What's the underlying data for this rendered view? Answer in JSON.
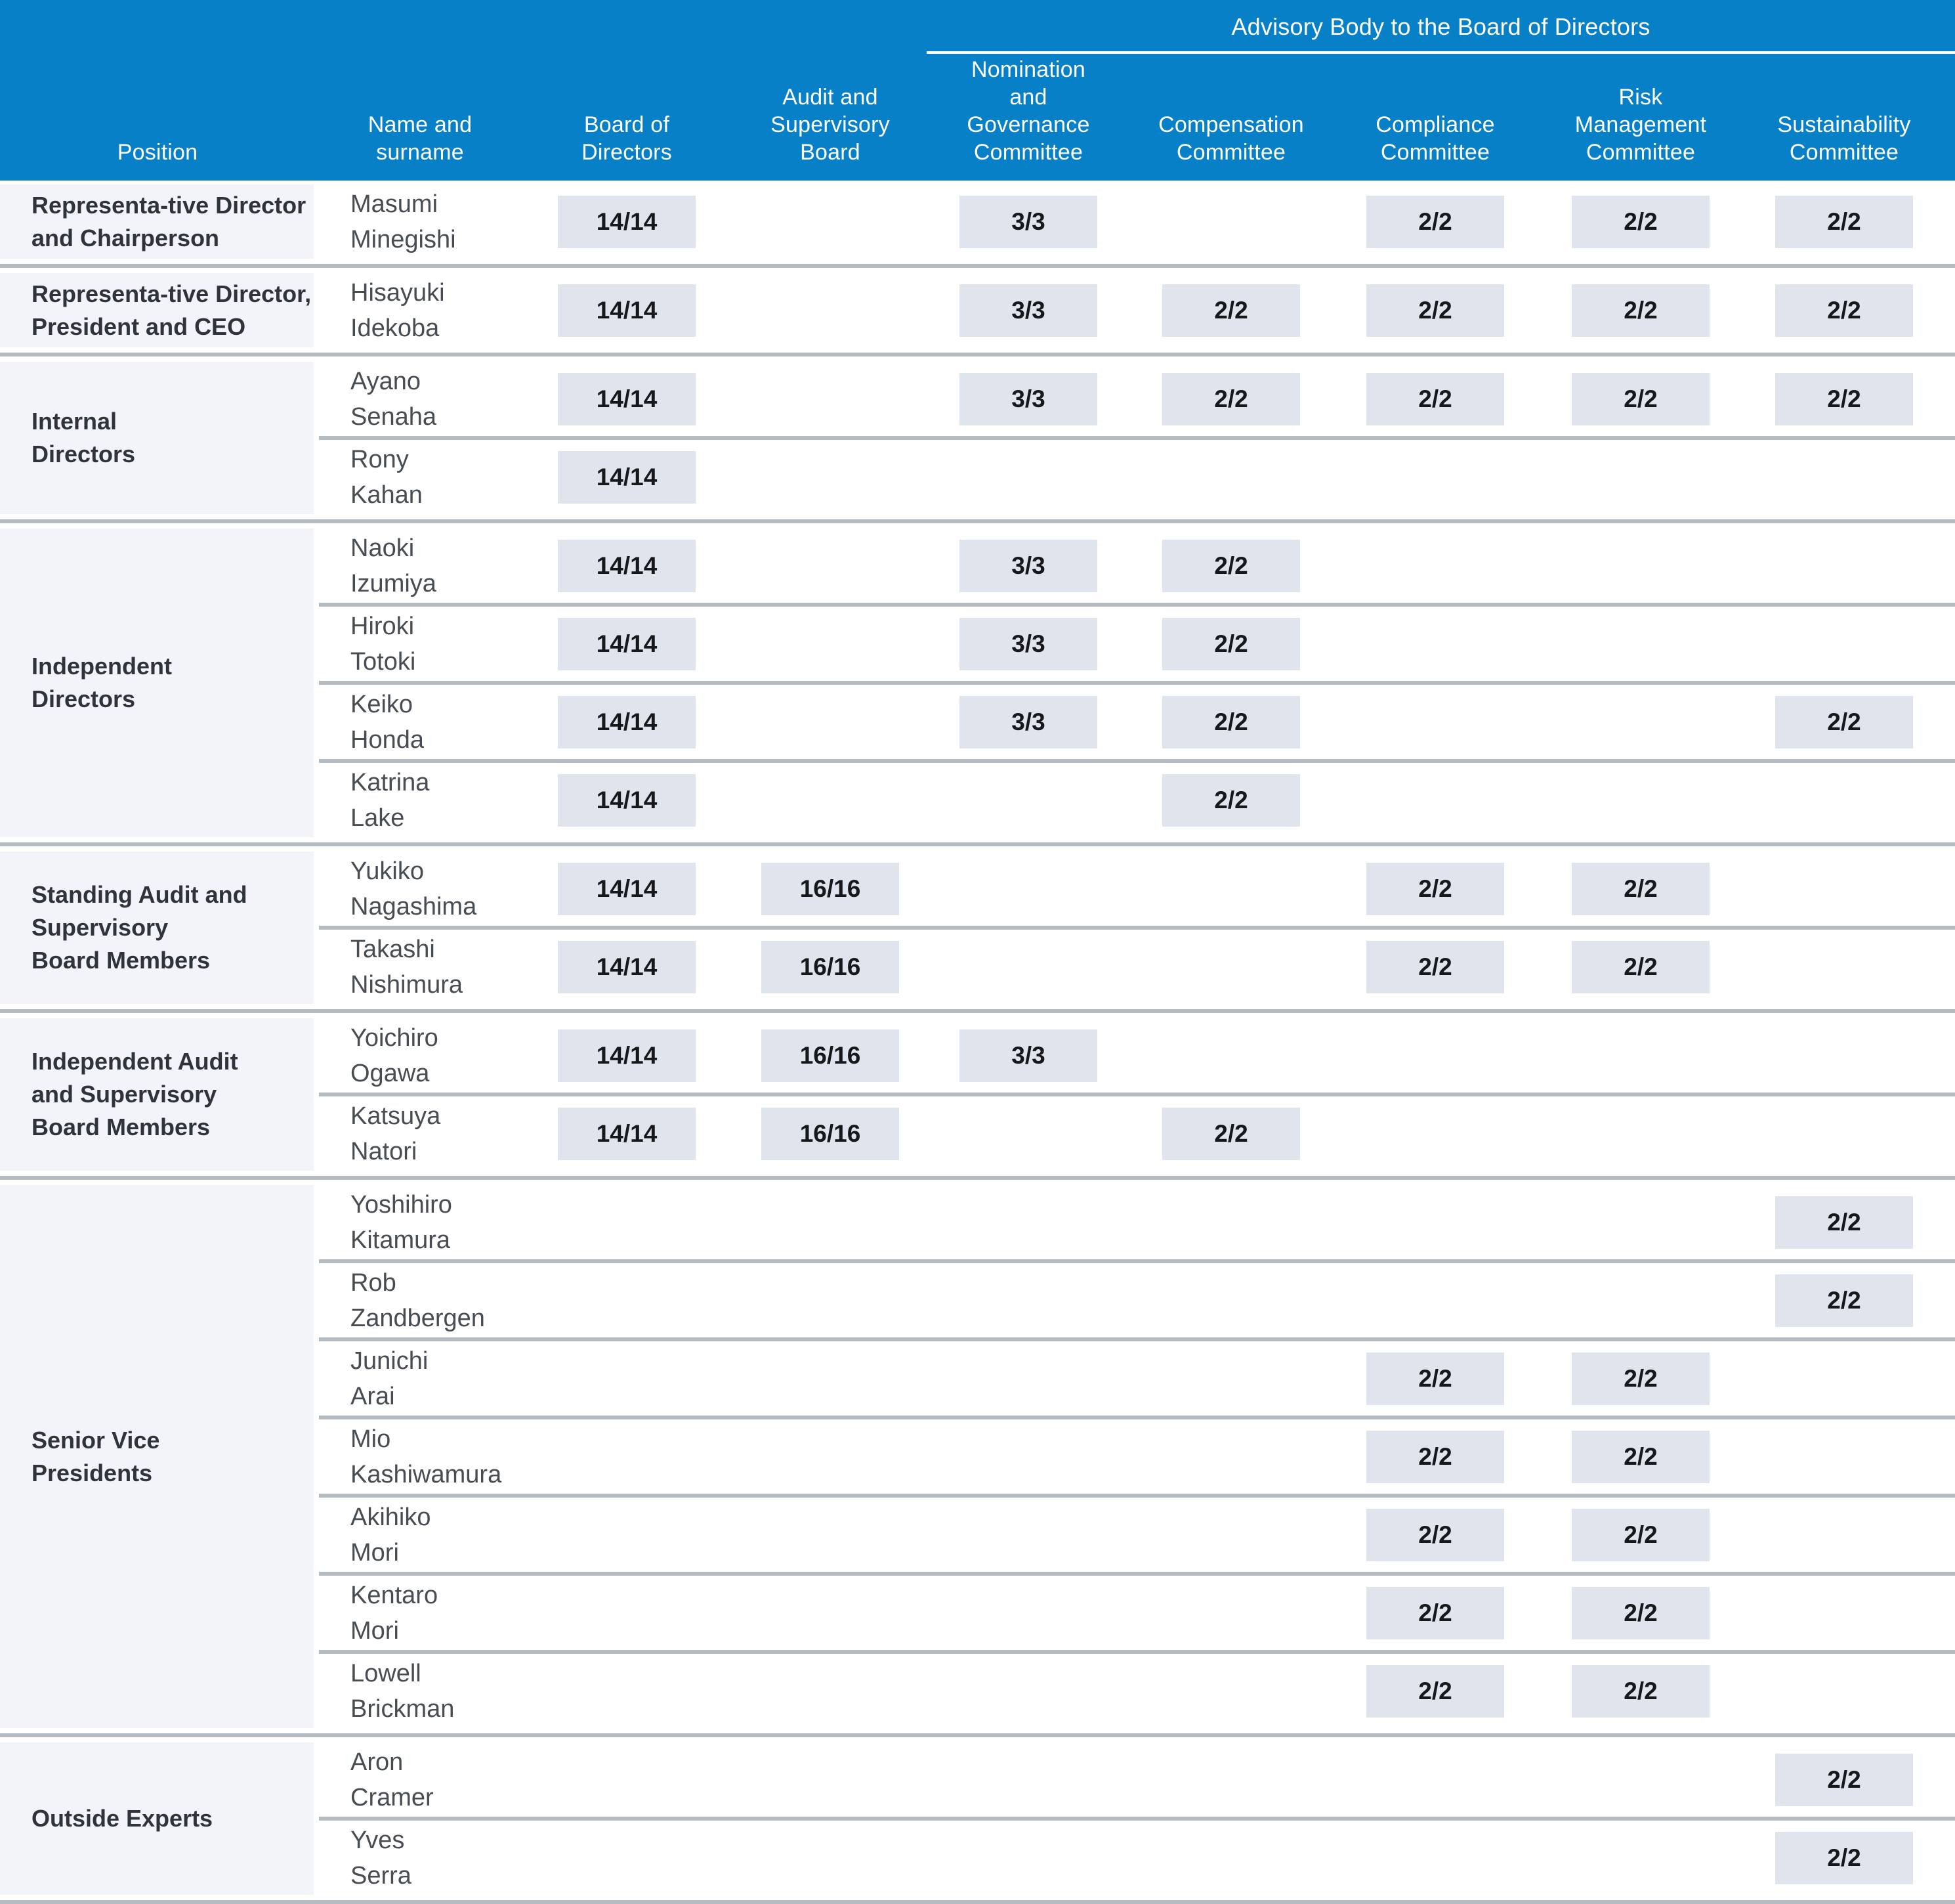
{
  "colors": {
    "header_blue": "#0780c8",
    "badge_background": "#e0e4ed",
    "position_cell_background": "#f2f4f9",
    "divider_gray": "#b4bbc1"
  },
  "header": {
    "advisory_title": "Advisory Body to the Board of Directors",
    "columns": [
      "Position",
      "Name and\nsurname",
      "Board of\nDirectors",
      "Audit and\nSupervisory\nBoard",
      "Nomination\nand\nGovernance\nCommittee",
      "Compensation\nCommittee",
      "Compliance\nCommittee",
      "Risk\nManagement\nCommittee",
      "Sustainability\nCommittee"
    ]
  },
  "groups": [
    {
      "position": "Representa-tive Director\nand Chairperson",
      "members": [
        {
          "name": "Masumi\nMinegishi",
          "board": "14/14",
          "nomination": "3/3",
          "compliance": "2/2",
          "risk": "2/2",
          "sustainability": "2/2"
        }
      ]
    },
    {
      "position": "Representa-tive Director,\nPresident and CEO",
      "members": [
        {
          "name": "Hisayuki\nIdekoba",
          "board": "14/14",
          "nomination": "3/3",
          "compensation": "2/2",
          "compliance": "2/2",
          "risk": "2/2",
          "sustainability": "2/2"
        }
      ]
    },
    {
      "position": "Internal\nDirectors",
      "members": [
        {
          "name": "Ayano\nSenaha",
          "board": "14/14",
          "nomination": "3/3",
          "compensation": "2/2",
          "compliance": "2/2",
          "risk": "2/2",
          "sustainability": "2/2"
        },
        {
          "name": "Rony\nKahan",
          "board": "14/14"
        }
      ]
    },
    {
      "position": "Independent\nDirectors",
      "members": [
        {
          "name": "Naoki\nIzumiya",
          "board": "14/14",
          "nomination": "3/3",
          "compensation": "2/2"
        },
        {
          "name": "Hiroki\nTotoki",
          "board": "14/14",
          "nomination": "3/3",
          "compensation": "2/2"
        },
        {
          "name": "Keiko\nHonda",
          "board": "14/14",
          "nomination": "3/3",
          "compensation": "2/2",
          "sustainability": "2/2"
        },
        {
          "name": "Katrina\nLake",
          "board": "14/14",
          "compensation": "2/2"
        }
      ]
    },
    {
      "position": "Standing Audit and\nSupervisory\nBoard Members",
      "members": [
        {
          "name": "Yukiko\nNagashima",
          "board": "14/14",
          "audit": "16/16",
          "compliance": "2/2",
          "risk": "2/2"
        },
        {
          "name": "Takashi\nNishimura",
          "board": "14/14",
          "audit": "16/16",
          "compliance": "2/2",
          "risk": "2/2"
        }
      ]
    },
    {
      "position": "Independent Audit\nand Supervisory\nBoard Members",
      "members": [
        {
          "name": "Yoichiro\nOgawa",
          "board": "14/14",
          "audit": "16/16",
          "nomination": "3/3"
        },
        {
          "name": "Katsuya\nNatori",
          "board": "14/14",
          "audit": "16/16",
          "compensation": "2/2"
        }
      ]
    },
    {
      "position": "Senior Vice\nPresidents",
      "members": [
        {
          "name": "Yoshihiro\nKitamura",
          "sustainability": "2/2"
        },
        {
          "name": "Rob\nZandbergen",
          "sustainability": "2/2"
        },
        {
          "name": "Junichi\nArai",
          "compliance": "2/2",
          "risk": "2/2"
        },
        {
          "name": "Mio\nKashiwamura",
          "compliance": "2/2",
          "risk": "2/2"
        },
        {
          "name": "Akihiko\nMori",
          "compliance": "2/2",
          "risk": "2/2"
        },
        {
          "name": "Kentaro\nMori",
          "compliance": "2/2",
          "risk": "2/2"
        },
        {
          "name": "Lowell\nBrickman",
          "compliance": "2/2",
          "risk": "2/2"
        }
      ]
    },
    {
      "position": "Outside Experts",
      "members": [
        {
          "name": "Aron\nCramer",
          "sustainability": "2/2"
        },
        {
          "name": "Yves\nSerra",
          "sustainability": "2/2"
        }
      ]
    }
  ]
}
